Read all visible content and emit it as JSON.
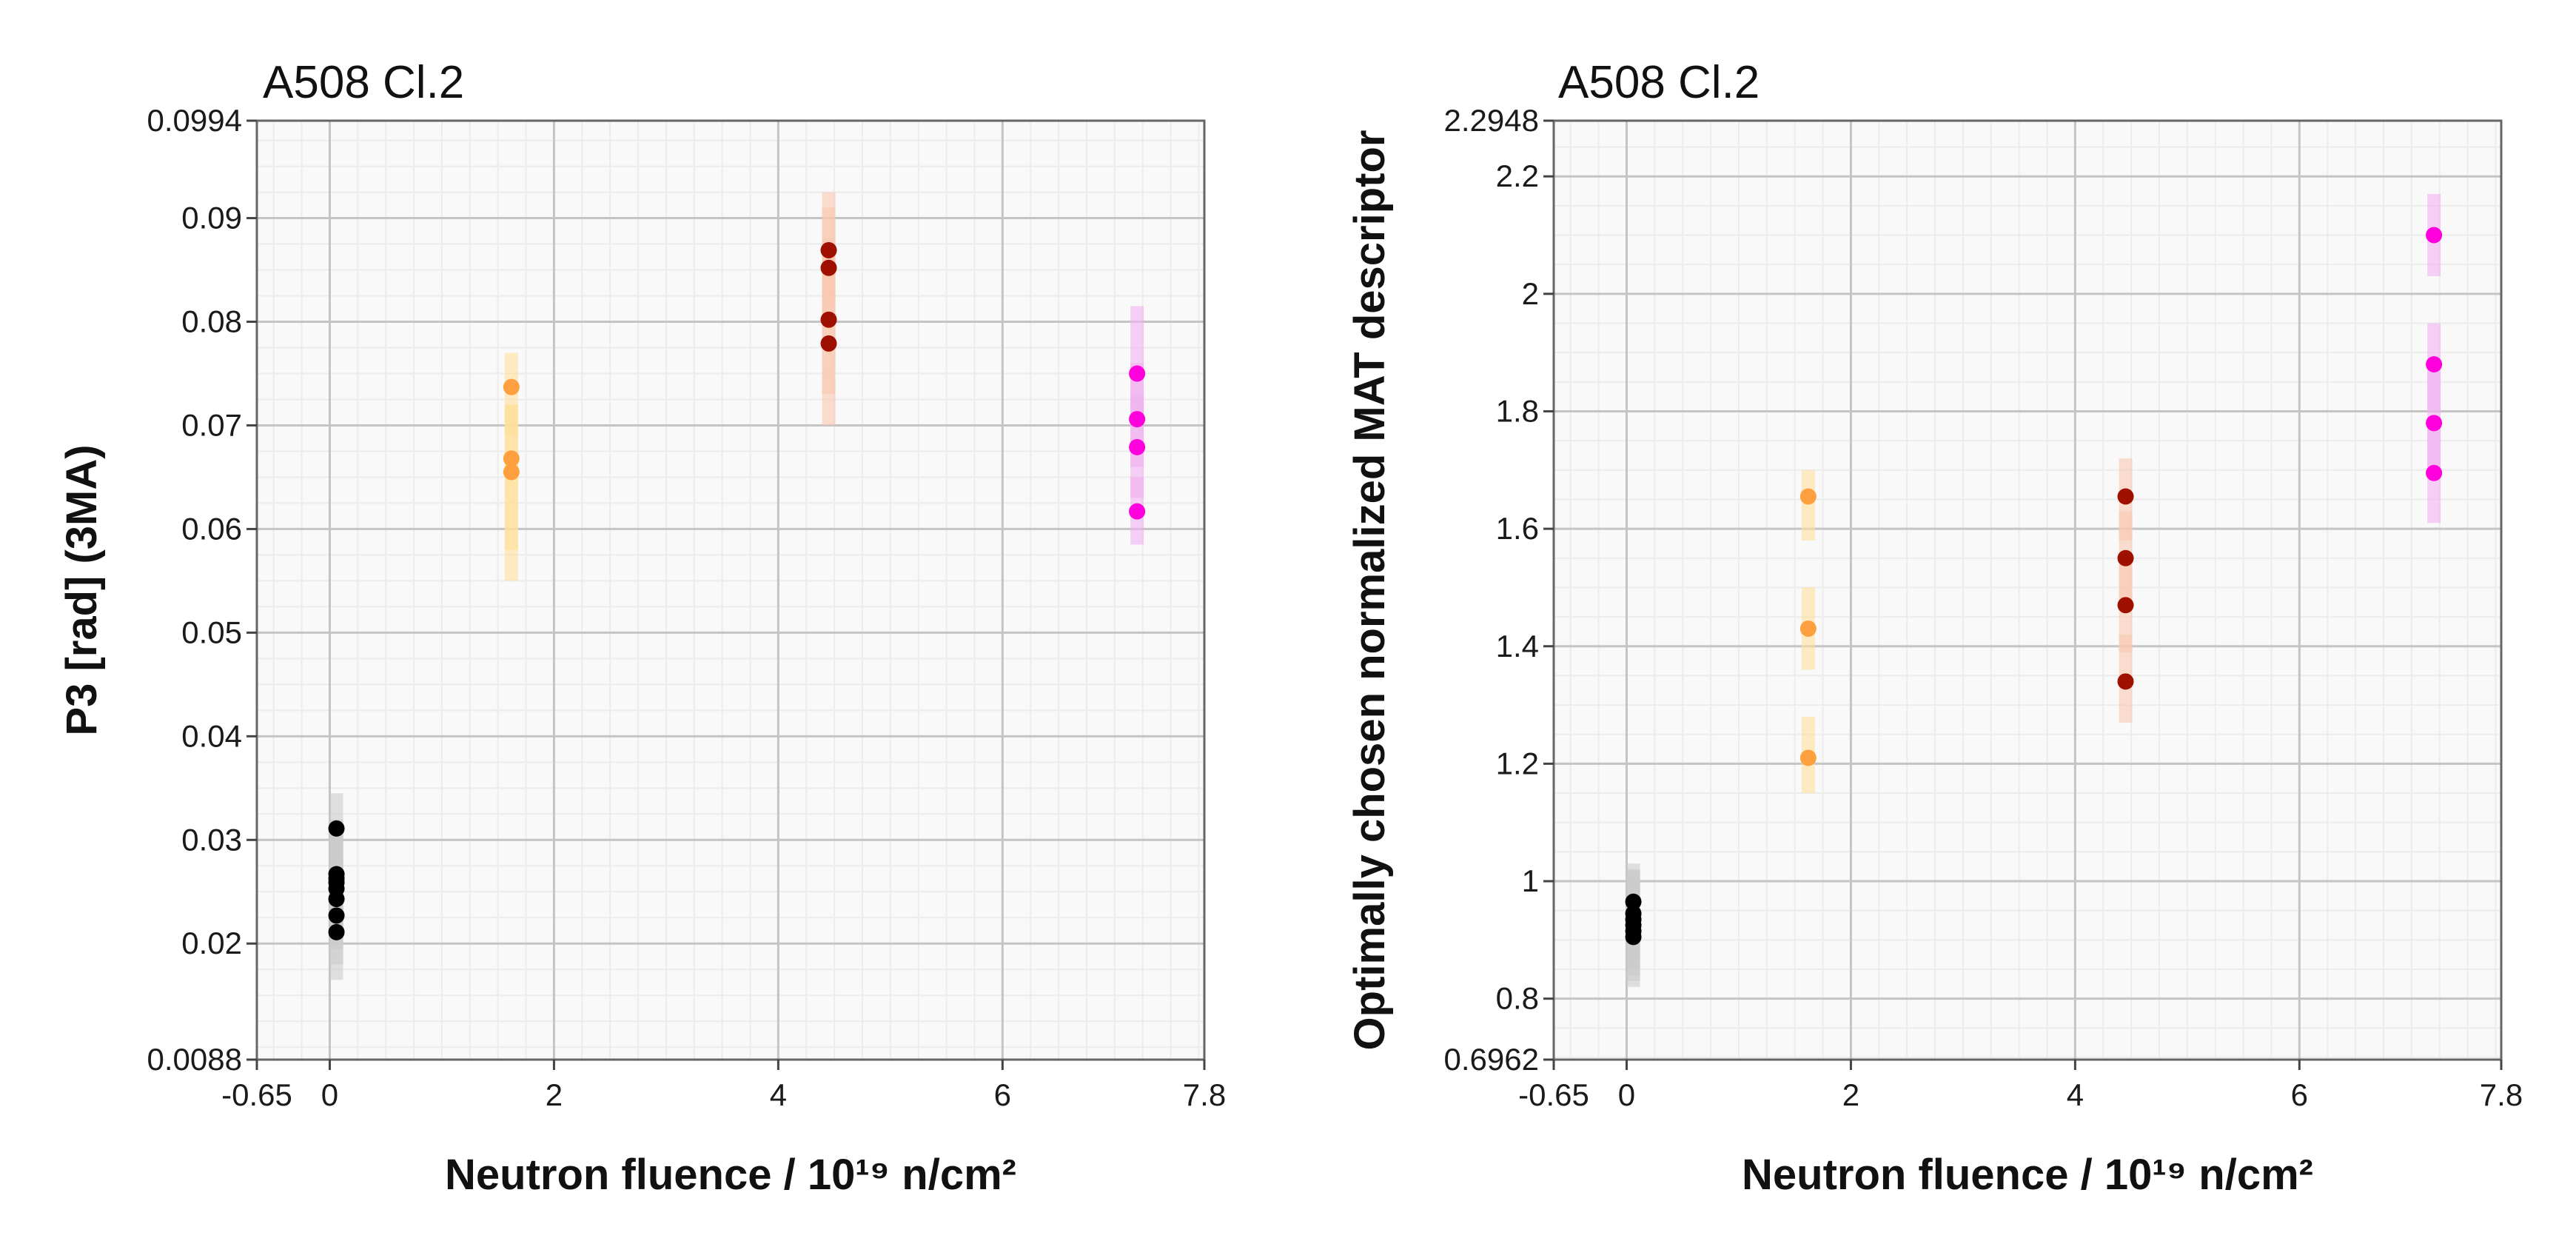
{
  "chart_data": [
    {
      "type": "scatter",
      "title": "A508 Cl.2",
      "xlabel": "Neutron fluence / 10¹⁹ n/cm²",
      "ylabel": "P3 [rad] (3MA)",
      "xlim": [
        -0.65,
        7.8
      ],
      "ylim": [
        0.0088,
        0.0994
      ],
      "x_ticks": [
        "-0.65",
        "0",
        "2",
        "4",
        "6",
        "7.8"
      ],
      "x_tick_values": [
        -0.65,
        0,
        2,
        4,
        6,
        7.8
      ],
      "y_ticks": [
        "0.0088",
        "0.02",
        "0.03",
        "0.04",
        "0.05",
        "0.06",
        "0.07",
        "0.08",
        "0.09",
        "0.0994"
      ],
      "y_tick_values": [
        0.0088,
        0.02,
        0.03,
        0.04,
        0.05,
        0.06,
        0.07,
        0.08,
        0.09,
        0.0994
      ],
      "grid": true,
      "series": [
        {
          "color": "#000000",
          "band_color": "#cccccc",
          "x": [
            0.06,
            0.06,
            0.06,
            0.06,
            0.06,
            0.06,
            0.06,
            0.06
          ],
          "y": [
            0.0211,
            0.0227,
            0.0243,
            0.0253,
            0.0259,
            0.0263,
            0.0267,
            0.0311
          ],
          "band": [
            [
              0.0165,
              0.0265
            ],
            [
              0.018,
              0.028
            ],
            [
              0.0195,
              0.0295
            ],
            [
              0.0205,
              0.0305
            ],
            [
              0.021,
              0.031
            ],
            [
              0.0215,
              0.0315
            ],
            [
              0.022,
              0.032
            ],
            [
              0.026,
              0.0345
            ]
          ]
        },
        {
          "color": "#ffa040",
          "band_color": "#ffe09a",
          "x": [
            1.62,
            1.62,
            1.62
          ],
          "y": [
            0.0655,
            0.0668,
            0.0737
          ],
          "band": [
            [
              0.055,
              0.072
            ],
            [
              0.058,
              0.072
            ],
            [
              0.069,
              0.077
            ]
          ]
        },
        {
          "color": "#a01000",
          "band_color": "#f8c8b0",
          "x": [
            4.45,
            4.45,
            4.45,
            4.45
          ],
          "y": [
            0.0779,
            0.0802,
            0.0852,
            0.0869
          ],
          "band": [
            [
              0.07,
              0.086
            ],
            [
              0.073,
              0.088
            ],
            [
              0.08,
              0.091
            ],
            [
              0.082,
              0.0925
            ]
          ]
        },
        {
          "color": "#ff00dd",
          "band_color": "#f0b0f0",
          "x": [
            7.2,
            7.2,
            7.2,
            7.2
          ],
          "y": [
            0.0617,
            0.0679,
            0.0706,
            0.075
          ],
          "band": [
            [
              0.0585,
              0.065
            ],
            [
              0.063,
              0.073
            ],
            [
              0.066,
              0.076
            ],
            [
              0.07,
              0.0815
            ]
          ]
        }
      ]
    },
    {
      "type": "scatter",
      "title": "A508 Cl.2",
      "xlabel": "Neutron fluence / 10¹⁹ n/cm²",
      "ylabel": "Optimally chosen normalized MAT descriptor",
      "xlim": [
        -0.65,
        7.8
      ],
      "ylim": [
        0.6962,
        2.2948
      ],
      "x_ticks": [
        "-0.65",
        "0",
        "2",
        "4",
        "6",
        "7.8"
      ],
      "x_tick_values": [
        -0.65,
        0,
        2,
        4,
        6,
        7.8
      ],
      "y_ticks": [
        "0.6962",
        "0.8",
        "1",
        "1.2",
        "1.4",
        "1.6",
        "1.8",
        "2",
        "2.2",
        "2.2948"
      ],
      "y_tick_values": [
        0.6962,
        0.8,
        1,
        1.2,
        1.4,
        1.6,
        1.8,
        2,
        2.2,
        2.2948
      ],
      "grid": true,
      "series": [
        {
          "color": "#000000",
          "band_color": "#cccccc",
          "x": [
            0.06,
            0.06,
            0.06,
            0.06,
            0.06,
            0.06
          ],
          "y": [
            0.905,
            0.915,
            0.925,
            0.935,
            0.945,
            0.965
          ],
          "band": [
            [
              0.82,
              0.99
            ],
            [
              0.83,
              1.0
            ],
            [
              0.84,
              1.01
            ],
            [
              0.85,
              1.02
            ],
            [
              0.86,
              1.02
            ],
            [
              0.88,
              1.03
            ]
          ]
        },
        {
          "color": "#ffa040",
          "band_color": "#ffe09a",
          "x": [
            1.62,
            1.62,
            1.62
          ],
          "y": [
            1.21,
            1.43,
            1.655
          ],
          "band": [
            [
              1.15,
              1.28
            ],
            [
              1.36,
              1.5
            ],
            [
              1.58,
              1.7
            ]
          ]
        },
        {
          "color": "#a01000",
          "band_color": "#f8c8b0",
          "x": [
            4.45,
            4.45,
            4.45,
            4.45
          ],
          "y": [
            1.34,
            1.47,
            1.55,
            1.655
          ],
          "band": [
            [
              1.27,
              1.42
            ],
            [
              1.39,
              1.55
            ],
            [
              1.47,
              1.63
            ],
            [
              1.58,
              1.72
            ]
          ]
        },
        {
          "color": "#ff00dd",
          "band_color": "#f0b0f0",
          "x": [
            7.2,
            7.2,
            7.2,
            7.2
          ],
          "y": [
            1.695,
            1.78,
            1.88,
            2.1
          ],
          "band": [
            [
              1.61,
              1.79
            ],
            [
              1.69,
              1.87
            ],
            [
              1.8,
              1.95
            ],
            [
              2.03,
              2.17
            ]
          ]
        }
      ]
    }
  ]
}
